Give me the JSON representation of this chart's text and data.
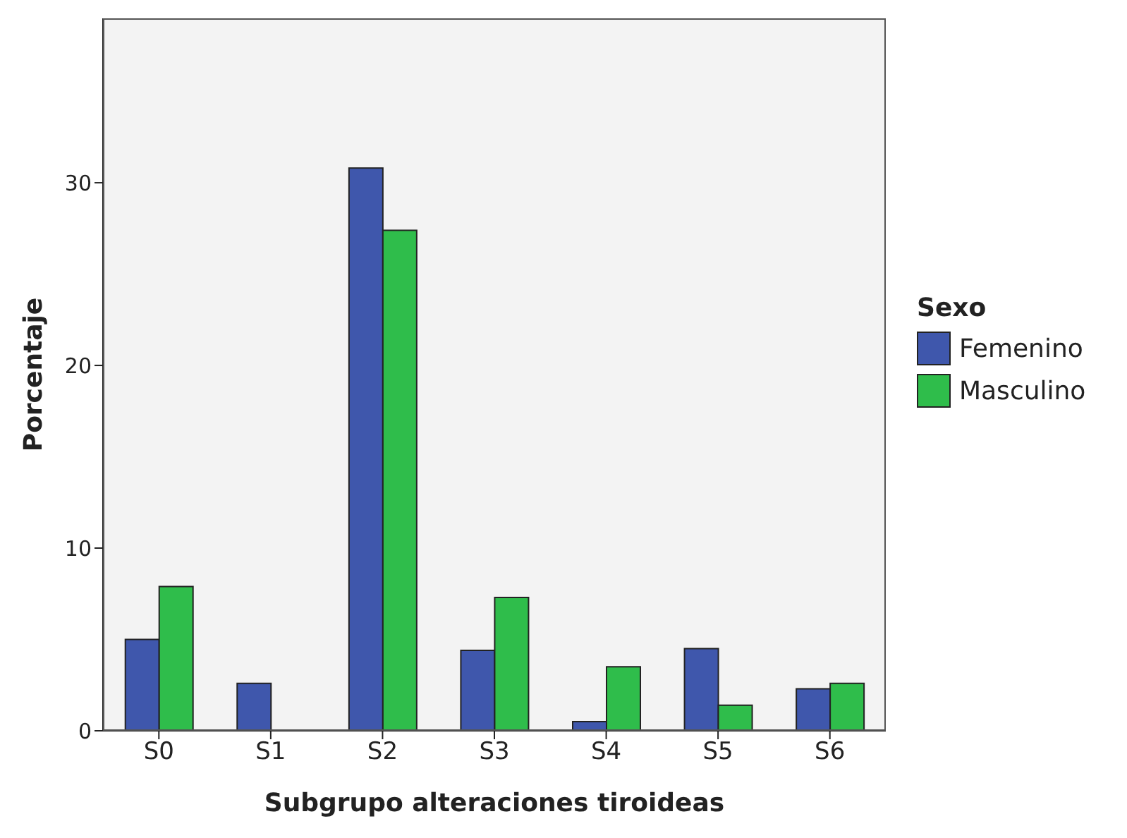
{
  "chart_data": {
    "type": "bar",
    "xlabel": "Subgrupo alteraciones tiroideas",
    "ylabel": "Porcentaje",
    "legend_title": "Sexo",
    "legend": "right",
    "categories": [
      "S0",
      "S1",
      "S2",
      "S3",
      "S4",
      "S5",
      "S6"
    ],
    "ylim": [
      0,
      39
    ],
    "yticks": [
      0,
      10,
      20,
      30
    ],
    "series": [
      {
        "name": "Femenino",
        "color": "#3f57ac",
        "values": [
          5.0,
          2.6,
          30.8,
          4.4,
          0.5,
          4.5,
          2.3
        ]
      },
      {
        "name": "Masculino",
        "color": "#2fbd4b",
        "values": [
          7.9,
          0,
          27.4,
          7.3,
          3.5,
          1.4,
          2.6
        ]
      }
    ]
  }
}
